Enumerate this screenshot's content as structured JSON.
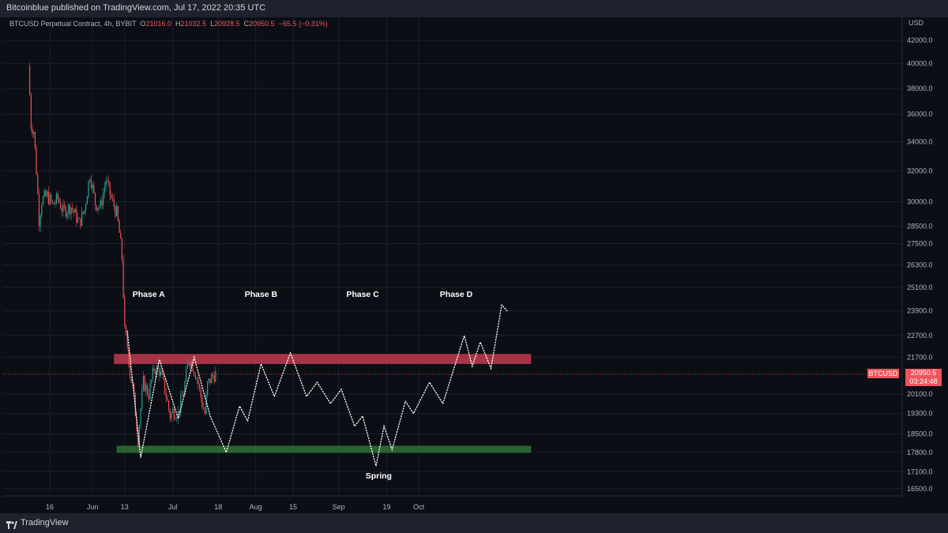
{
  "header": {
    "publisher_line": "Bitcoinblue published on TradingView.com, Jul 17, 2022 20:35 UTC"
  },
  "legend": {
    "symbol": "BTCUSD Perpetual Contract, 4h, BYBIT",
    "o_label": "O",
    "o_value": "21016.0",
    "h_label": "H",
    "h_value": "21032.5",
    "l_label": "L",
    "l_value": "20928.5",
    "c_label": "C",
    "c_value": "20950.5",
    "change": "−65.5 (−0.31%)"
  },
  "footer": {
    "brand": "TradingView"
  },
  "price_tag": {
    "symbol": "BTCUSD",
    "price": "20950.5",
    "countdown": "03:24:48"
  },
  "colors": {
    "up": "#26a69a",
    "down": "#ef5350",
    "resistance": "#b8384b",
    "support": "#2e6b35",
    "path": "#ffffff",
    "price_tag": "#f0545e"
  },
  "chart_data": {
    "type": "line",
    "title": "BTCUSD Perpetual Contract, 4h, BYBIT",
    "y_axis": {
      "unit_label": "USD",
      "scale": "log",
      "ticks": [
        16500,
        17100,
        17800,
        18500,
        19300,
        20100,
        21700,
        22700,
        23900,
        25100,
        26300,
        27500,
        28500,
        30000,
        32000,
        34000,
        36000,
        38000,
        40000,
        42000
      ],
      "tick_labels": [
        "16500.0",
        "17100.0",
        "17800.0",
        "18500.0",
        "19300.0",
        "20100.0",
        "21700.0",
        "22700.0",
        "23900.0",
        "25100.0",
        "26300.0",
        "27500.0",
        "28500.0",
        "30000.0",
        "32000.0",
        "34000.0",
        "36000.0",
        "38000.0",
        "40000.0",
        "42000.0"
      ]
    },
    "x_axis": {
      "ticks": [
        "2022-05-16",
        "2022-06-01",
        "2022-06-13",
        "2022-07-01",
        "2022-07-18",
        "2022-08-01",
        "2022-08-15",
        "2022-09-01",
        "2022-09-19",
        "2022-10-01"
      ],
      "tick_labels": [
        "16",
        "Jun",
        "13",
        "Jul",
        "18",
        "Aug",
        "15",
        "Sep",
        "19",
        "Oct"
      ]
    },
    "price_series": {
      "name": "BTCUSD",
      "points": [
        [
          "2022-05-08",
          39800
        ],
        [
          "2022-05-09",
          35200
        ],
        [
          "2022-05-10",
          34800
        ],
        [
          "2022-05-11",
          32000
        ],
        [
          "2022-05-12",
          28900
        ],
        [
          "2022-05-13",
          30100
        ],
        [
          "2022-05-15",
          30400
        ],
        [
          "2022-05-17",
          29800
        ],
        [
          "2022-05-19",
          30200
        ],
        [
          "2022-05-21",
          29400
        ],
        [
          "2022-05-24",
          29700
        ],
        [
          "2022-05-27",
          28700
        ],
        [
          "2022-05-29",
          29500
        ],
        [
          "2022-05-31",
          31800
        ],
        [
          "2022-06-02",
          29900
        ],
        [
          "2022-06-04",
          29700
        ],
        [
          "2022-06-06",
          31400
        ],
        [
          "2022-06-08",
          30200
        ],
        [
          "2022-06-10",
          29300
        ],
        [
          "2022-06-11",
          28100
        ],
        [
          "2022-06-12",
          26700
        ],
        [
          "2022-06-13",
          22900
        ],
        [
          "2022-06-14",
          22200
        ],
        [
          "2022-06-15",
          21000
        ],
        [
          "2022-06-16",
          20400
        ],
        [
          "2022-06-18",
          18300
        ],
        [
          "2022-06-19",
          19500
        ],
        [
          "2022-06-20",
          20600
        ],
        [
          "2022-06-22",
          20100
        ],
        [
          "2022-06-24",
          21200
        ],
        [
          "2022-06-26",
          21100
        ],
        [
          "2022-06-28",
          20300
        ],
        [
          "2022-06-30",
          19200
        ],
        [
          "2022-07-01",
          19400
        ],
        [
          "2022-07-03",
          19300
        ],
        [
          "2022-07-05",
          20200
        ],
        [
          "2022-07-07",
          21600
        ],
        [
          "2022-07-08",
          21500
        ],
        [
          "2022-07-10",
          20800
        ],
        [
          "2022-07-12",
          19700
        ],
        [
          "2022-07-13",
          19300
        ],
        [
          "2022-07-14",
          20500
        ],
        [
          "2022-07-16",
          20900
        ],
        [
          "2022-07-17",
          20950
        ]
      ]
    },
    "resistance_zone": {
      "from": 21400,
      "to": 21850,
      "start": "2022-06-09",
      "end": "2022-11-12"
    },
    "support_zone": {
      "from": 17780,
      "to": 18050,
      "start": "2022-06-10",
      "end": "2022-11-12"
    },
    "projection_path": {
      "points": [
        [
          "2022-06-14",
          22900
        ],
        [
          "2022-06-19",
          17600
        ],
        [
          "2022-06-26",
          21600
        ],
        [
          "2022-07-03",
          19100
        ],
        [
          "2022-07-09",
          21700
        ],
        [
          "2022-07-15",
          19200
        ],
        [
          "2022-07-21",
          17800
        ],
        [
          "2022-07-26",
          19600
        ],
        [
          "2022-07-29",
          19000
        ],
        [
          "2022-08-03",
          21400
        ],
        [
          "2022-08-08",
          20000
        ],
        [
          "2022-08-14",
          21900
        ],
        [
          "2022-08-20",
          20000
        ],
        [
          "2022-08-24",
          20600
        ],
        [
          "2022-08-29",
          19700
        ],
        [
          "2022-09-02",
          20300
        ],
        [
          "2022-09-07",
          18800
        ],
        [
          "2022-09-10",
          19200
        ],
        [
          "2022-09-15",
          17300
        ],
        [
          "2022-09-18",
          18800
        ],
        [
          "2022-09-21",
          17900
        ],
        [
          "2022-09-26",
          19800
        ],
        [
          "2022-09-29",
          19300
        ],
        [
          "2022-10-05",
          20600
        ],
        [
          "2022-10-10",
          19700
        ],
        [
          "2022-10-18",
          22700
        ],
        [
          "2022-10-21",
          21300
        ],
        [
          "2022-10-24",
          22400
        ],
        [
          "2022-10-28",
          21200
        ],
        [
          "2022-11-01",
          24200
        ],
        [
          "2022-11-03",
          23900
        ]
      ]
    },
    "annotations": [
      {
        "text": "Phase A",
        "date": "2022-06-22",
        "price": 24600
      },
      {
        "text": "Phase B",
        "date": "2022-08-03",
        "price": 24600
      },
      {
        "text": "Phase C",
        "date": "2022-09-10",
        "price": 24600
      },
      {
        "text": "Phase D",
        "date": "2022-10-15",
        "price": 24600
      },
      {
        "text": "Spring",
        "date": "2022-09-16",
        "price": 16850
      }
    ],
    "grid": true,
    "legend_position": "top-left"
  }
}
